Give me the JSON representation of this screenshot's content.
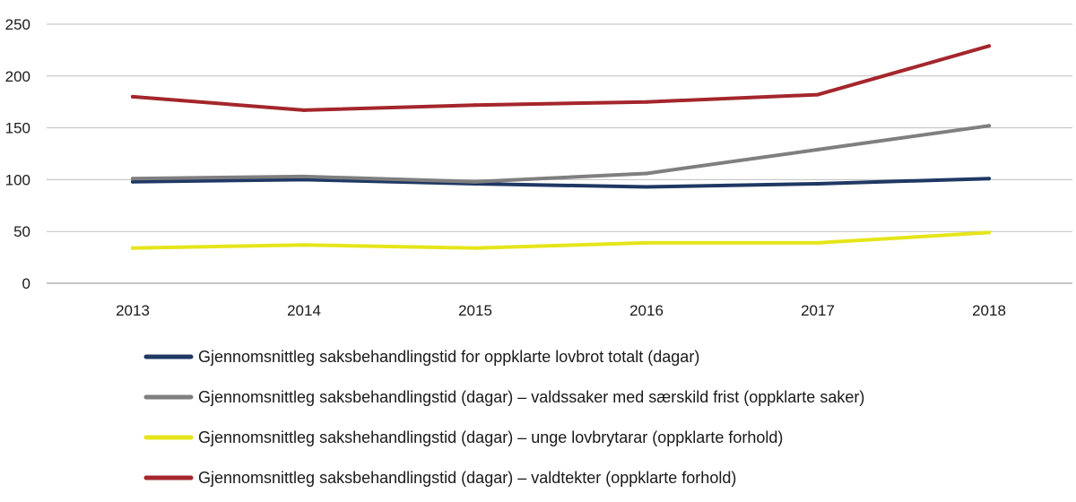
{
  "chart_data": {
    "type": "line",
    "title": "",
    "xlabel": "",
    "ylabel": "",
    "x": [
      "2013",
      "2014",
      "2015",
      "2016",
      "2017",
      "2018"
    ],
    "ylim": [
      0,
      250
    ],
    "yticks": [
      0,
      50,
      100,
      150,
      200,
      250
    ],
    "grid": true,
    "legend_position": "bottom",
    "series": [
      {
        "name": "Gjennomsnittleg saksbehandlingstid for oppklarte lovbrot totalt (dagar)",
        "color": "#1f3864",
        "values": [
          98,
          100,
          96,
          93,
          96,
          101
        ]
      },
      {
        "name": "Gjennomsnittleg saksbehandlingstid (dagar) – valdssaker med særskild frist (oppklarte saker)",
        "color": "#7f7f7f",
        "values": [
          101,
          103,
          98,
          106,
          129,
          152
        ]
      },
      {
        "name": "Gjennomsnittleg sakshehandlingstid (dagar) – unge lovbrytarar (oppklarte forhold)",
        "color": "#e5e51a",
        "values": [
          34,
          37,
          34,
          39,
          39,
          49
        ]
      },
      {
        "name": "Gjennomsnittleg saksbehandlingstid (dagar) – valdtekter (oppklarte forhold)",
        "color": "#a4262c",
        "values": [
          180,
          167,
          172,
          175,
          182,
          229
        ]
      }
    ]
  }
}
